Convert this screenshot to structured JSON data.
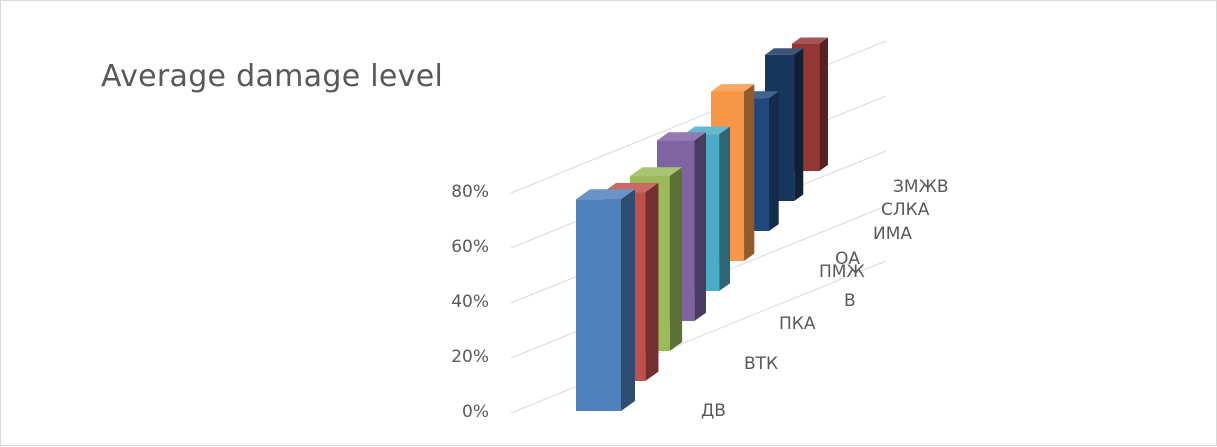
{
  "chart_data": {
    "type": "bar",
    "title": "Average damage level",
    "categories": [
      "ДВ",
      "ВТК",
      "ПКА",
      "В",
      "ПМЖ",
      "ОА",
      "ИМА",
      "СЛКА",
      "ЗМЖВ"
    ],
    "values": [
      0.77,
      0.73,
      0.72,
      0.79,
      0.73,
      0.84,
      0.7,
      0.82,
      0.76
    ],
    "colors": [
      "#4f81bd",
      "#c0504d",
      "#9bbb59",
      "#8064a2",
      "#4bacc6",
      "#f79646",
      "#1f497d",
      "#17375e",
      "#943634"
    ],
    "y_ticks": [
      "0%",
      "20%",
      "40%",
      "60%",
      "80%"
    ],
    "ylim": [
      0,
      0.8
    ],
    "grid": true,
    "legend": "none",
    "xlabel": "",
    "ylabel": ""
  }
}
